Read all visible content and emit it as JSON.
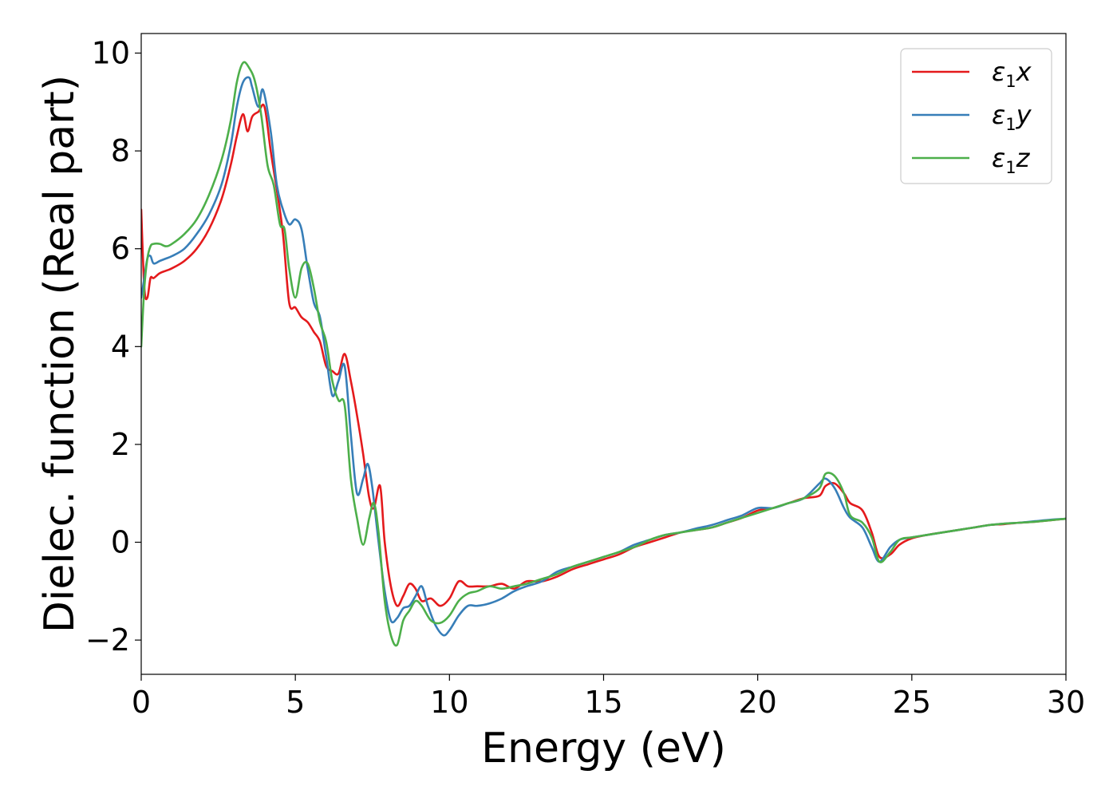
{
  "chart_data": {
    "type": "line",
    "xlabel": "Energy (eV)",
    "ylabel": "Dielec. function (Real part)",
    "xlim": [
      0,
      30
    ],
    "ylim": [
      -2.7,
      10.4
    ],
    "xticks": [
      0,
      5,
      10,
      15,
      20,
      25,
      30
    ],
    "yticks": [
      -2,
      0,
      2,
      4,
      6,
      8,
      10
    ],
    "xtick_labels": [
      "0",
      "5",
      "10",
      "15",
      "20",
      "25",
      "30"
    ],
    "ytick_labels": [
      "−2",
      "0",
      "2",
      "4",
      "6",
      "8",
      "10"
    ],
    "grid": false,
    "legend_position": "top-right",
    "series": [
      {
        "name": "ε1x",
        "legend": {
          "base": "ε",
          "sub": "1",
          "suffix": "x"
        },
        "color": "#e41a1c",
        "x": [
          0,
          0.1,
          0.2,
          0.3,
          0.4,
          0.6,
          0.8,
          1.0,
          1.4,
          1.8,
          2.2,
          2.6,
          2.9,
          3.1,
          3.3,
          3.45,
          3.6,
          3.8,
          4.0,
          4.2,
          4.4,
          4.6,
          4.8,
          5.0,
          5.2,
          5.4,
          5.6,
          5.8,
          6.0,
          6.2,
          6.4,
          6.6,
          6.8,
          7.0,
          7.2,
          7.4,
          7.55,
          7.75,
          7.9,
          8.1,
          8.3,
          8.5,
          8.7,
          8.9,
          9.1,
          9.4,
          9.7,
          10.0,
          10.3,
          10.6,
          10.9,
          11.3,
          11.7,
          12.1,
          12.5,
          13.0,
          13.5,
          14.0,
          14.5,
          15.0,
          15.5,
          16.0,
          16.5,
          17.0,
          17.5,
          18.0,
          18.5,
          19.0,
          19.5,
          20.0,
          20.5,
          21.0,
          21.5,
          22.0,
          22.2,
          22.5,
          22.8,
          23.0,
          23.4,
          23.7,
          23.95,
          24.3,
          24.6,
          25.0,
          25.5,
          26.0,
          26.5,
          27.0,
          27.5,
          28.0,
          28.5,
          29.0,
          29.5,
          30.0
        ],
        "y": [
          6.8,
          5.2,
          5.0,
          5.4,
          5.4,
          5.5,
          5.55,
          5.6,
          5.75,
          6.0,
          6.4,
          7.0,
          7.7,
          8.3,
          8.75,
          8.4,
          8.7,
          8.8,
          8.9,
          8.0,
          7.2,
          6.3,
          4.9,
          4.8,
          4.6,
          4.5,
          4.3,
          4.1,
          3.6,
          3.5,
          3.45,
          3.85,
          3.3,
          2.6,
          1.8,
          0.9,
          0.7,
          1.15,
          0.0,
          -0.9,
          -1.3,
          -1.1,
          -0.85,
          -0.95,
          -1.2,
          -1.15,
          -1.3,
          -1.15,
          -0.8,
          -0.9,
          -0.9,
          -0.9,
          -0.85,
          -0.95,
          -0.8,
          -0.8,
          -0.7,
          -0.55,
          -0.45,
          -0.35,
          -0.25,
          -0.1,
          0.0,
          0.1,
          0.2,
          0.25,
          0.3,
          0.4,
          0.5,
          0.65,
          0.7,
          0.8,
          0.9,
          0.95,
          1.15,
          1.2,
          1.0,
          0.8,
          0.65,
          0.2,
          -0.3,
          -0.25,
          -0.05,
          0.08,
          0.15,
          0.2,
          0.25,
          0.3,
          0.35,
          0.37,
          0.4,
          0.42,
          0.45,
          0.48
        ]
      },
      {
        "name": "ε1y",
        "legend": {
          "base": "ε",
          "sub": "1",
          "suffix": "y"
        },
        "color": "#377eb8",
        "x": [
          0,
          0.1,
          0.2,
          0.3,
          0.4,
          0.6,
          0.8,
          1.0,
          1.4,
          1.8,
          2.2,
          2.6,
          2.9,
          3.1,
          3.3,
          3.5,
          3.6,
          3.8,
          3.95,
          4.2,
          4.4,
          4.6,
          4.8,
          5.0,
          5.2,
          5.4,
          5.6,
          5.8,
          6.0,
          6.2,
          6.4,
          6.6,
          6.8,
          7.0,
          7.2,
          7.35,
          7.5,
          7.7,
          7.9,
          8.1,
          8.3,
          8.5,
          8.7,
          8.9,
          9.1,
          9.3,
          9.55,
          9.8,
          10.0,
          10.3,
          10.6,
          10.9,
          11.3,
          11.7,
          12.1,
          12.5,
          13.0,
          13.5,
          14.0,
          14.5,
          15.0,
          15.5,
          16.0,
          16.5,
          17.0,
          17.5,
          18.0,
          18.5,
          19.0,
          19.5,
          20.0,
          20.5,
          21.0,
          21.5,
          22.0,
          22.2,
          22.5,
          22.8,
          23.0,
          23.4,
          23.7,
          23.95,
          24.3,
          24.6,
          25.0,
          25.5,
          26.0,
          26.5,
          27.0,
          27.5,
          28.0,
          28.5,
          29.0,
          29.5,
          30.0
        ],
        "y": [
          5.0,
          5.4,
          5.8,
          5.85,
          5.7,
          5.75,
          5.8,
          5.85,
          6.0,
          6.3,
          6.7,
          7.3,
          8.1,
          8.9,
          9.4,
          9.5,
          9.3,
          8.9,
          9.25,
          8.4,
          7.3,
          6.8,
          6.5,
          6.6,
          6.4,
          5.6,
          4.9,
          4.6,
          3.8,
          3.0,
          3.3,
          3.6,
          2.2,
          1.0,
          1.3,
          1.6,
          1.1,
          0.0,
          -1.0,
          -1.6,
          -1.55,
          -1.35,
          -1.3,
          -1.1,
          -0.9,
          -1.3,
          -1.7,
          -1.9,
          -1.8,
          -1.5,
          -1.3,
          -1.3,
          -1.25,
          -1.15,
          -1.0,
          -0.9,
          -0.8,
          -0.6,
          -0.5,
          -0.4,
          -0.3,
          -0.2,
          -0.05,
          0.05,
          0.15,
          0.2,
          0.28,
          0.35,
          0.45,
          0.55,
          0.7,
          0.7,
          0.8,
          0.9,
          1.2,
          1.3,
          1.1,
          0.7,
          0.5,
          0.3,
          -0.1,
          -0.4,
          -0.1,
          0.05,
          0.1,
          0.15,
          0.2,
          0.25,
          0.3,
          0.35,
          0.38,
          0.4,
          0.43,
          0.46,
          0.48
        ]
      },
      {
        "name": "ε1z",
        "legend": {
          "base": "ε",
          "sub": "1",
          "suffix": "z"
        },
        "color": "#4daf4a",
        "x": [
          0,
          0.1,
          0.2,
          0.3,
          0.4,
          0.6,
          0.8,
          1.0,
          1.4,
          1.8,
          2.2,
          2.6,
          2.9,
          3.1,
          3.3,
          3.5,
          3.7,
          3.9,
          4.1,
          4.3,
          4.5,
          4.65,
          4.8,
          5.0,
          5.2,
          5.4,
          5.6,
          5.8,
          6.0,
          6.2,
          6.4,
          6.6,
          6.8,
          7.0,
          7.2,
          7.4,
          7.55,
          7.7,
          7.9,
          8.1,
          8.3,
          8.5,
          8.7,
          8.9,
          9.1,
          9.4,
          9.7,
          10.0,
          10.3,
          10.6,
          10.9,
          11.3,
          11.7,
          12.1,
          12.5,
          13.0,
          13.5,
          14.0,
          14.5,
          15.0,
          15.5,
          16.0,
          16.5,
          17.0,
          17.5,
          18.0,
          18.5,
          19.0,
          19.5,
          20.0,
          20.5,
          21.0,
          21.5,
          22.0,
          22.2,
          22.5,
          22.8,
          23.0,
          23.4,
          23.7,
          23.95,
          24.3,
          24.6,
          25.0,
          25.5,
          26.0,
          26.5,
          27.0,
          27.5,
          28.0,
          28.5,
          29.0,
          29.5,
          30.0
        ],
        "y": [
          4.0,
          5.2,
          5.8,
          6.05,
          6.1,
          6.1,
          6.05,
          6.1,
          6.3,
          6.6,
          7.1,
          7.8,
          8.6,
          9.4,
          9.8,
          9.7,
          9.4,
          8.7,
          7.7,
          7.3,
          6.5,
          6.4,
          5.6,
          5.0,
          5.6,
          5.7,
          5.2,
          4.5,
          4.1,
          3.3,
          2.9,
          2.8,
          1.3,
          0.5,
          -0.05,
          0.5,
          0.8,
          0.2,
          -1.2,
          -1.9,
          -2.1,
          -1.6,
          -1.4,
          -1.2,
          -1.3,
          -1.6,
          -1.65,
          -1.5,
          -1.2,
          -1.05,
          -1.0,
          -0.9,
          -0.95,
          -0.9,
          -0.85,
          -0.75,
          -0.65,
          -0.5,
          -0.4,
          -0.3,
          -0.2,
          -0.1,
          0.05,
          0.15,
          0.2,
          0.25,
          0.3,
          0.4,
          0.5,
          0.6,
          0.7,
          0.8,
          0.9,
          1.1,
          1.4,
          1.35,
          1.0,
          0.55,
          0.4,
          0.1,
          -0.4,
          -0.2,
          0.05,
          0.1,
          0.15,
          0.2,
          0.25,
          0.3,
          0.35,
          0.38,
          0.4,
          0.42,
          0.45,
          0.48
        ]
      }
    ]
  }
}
